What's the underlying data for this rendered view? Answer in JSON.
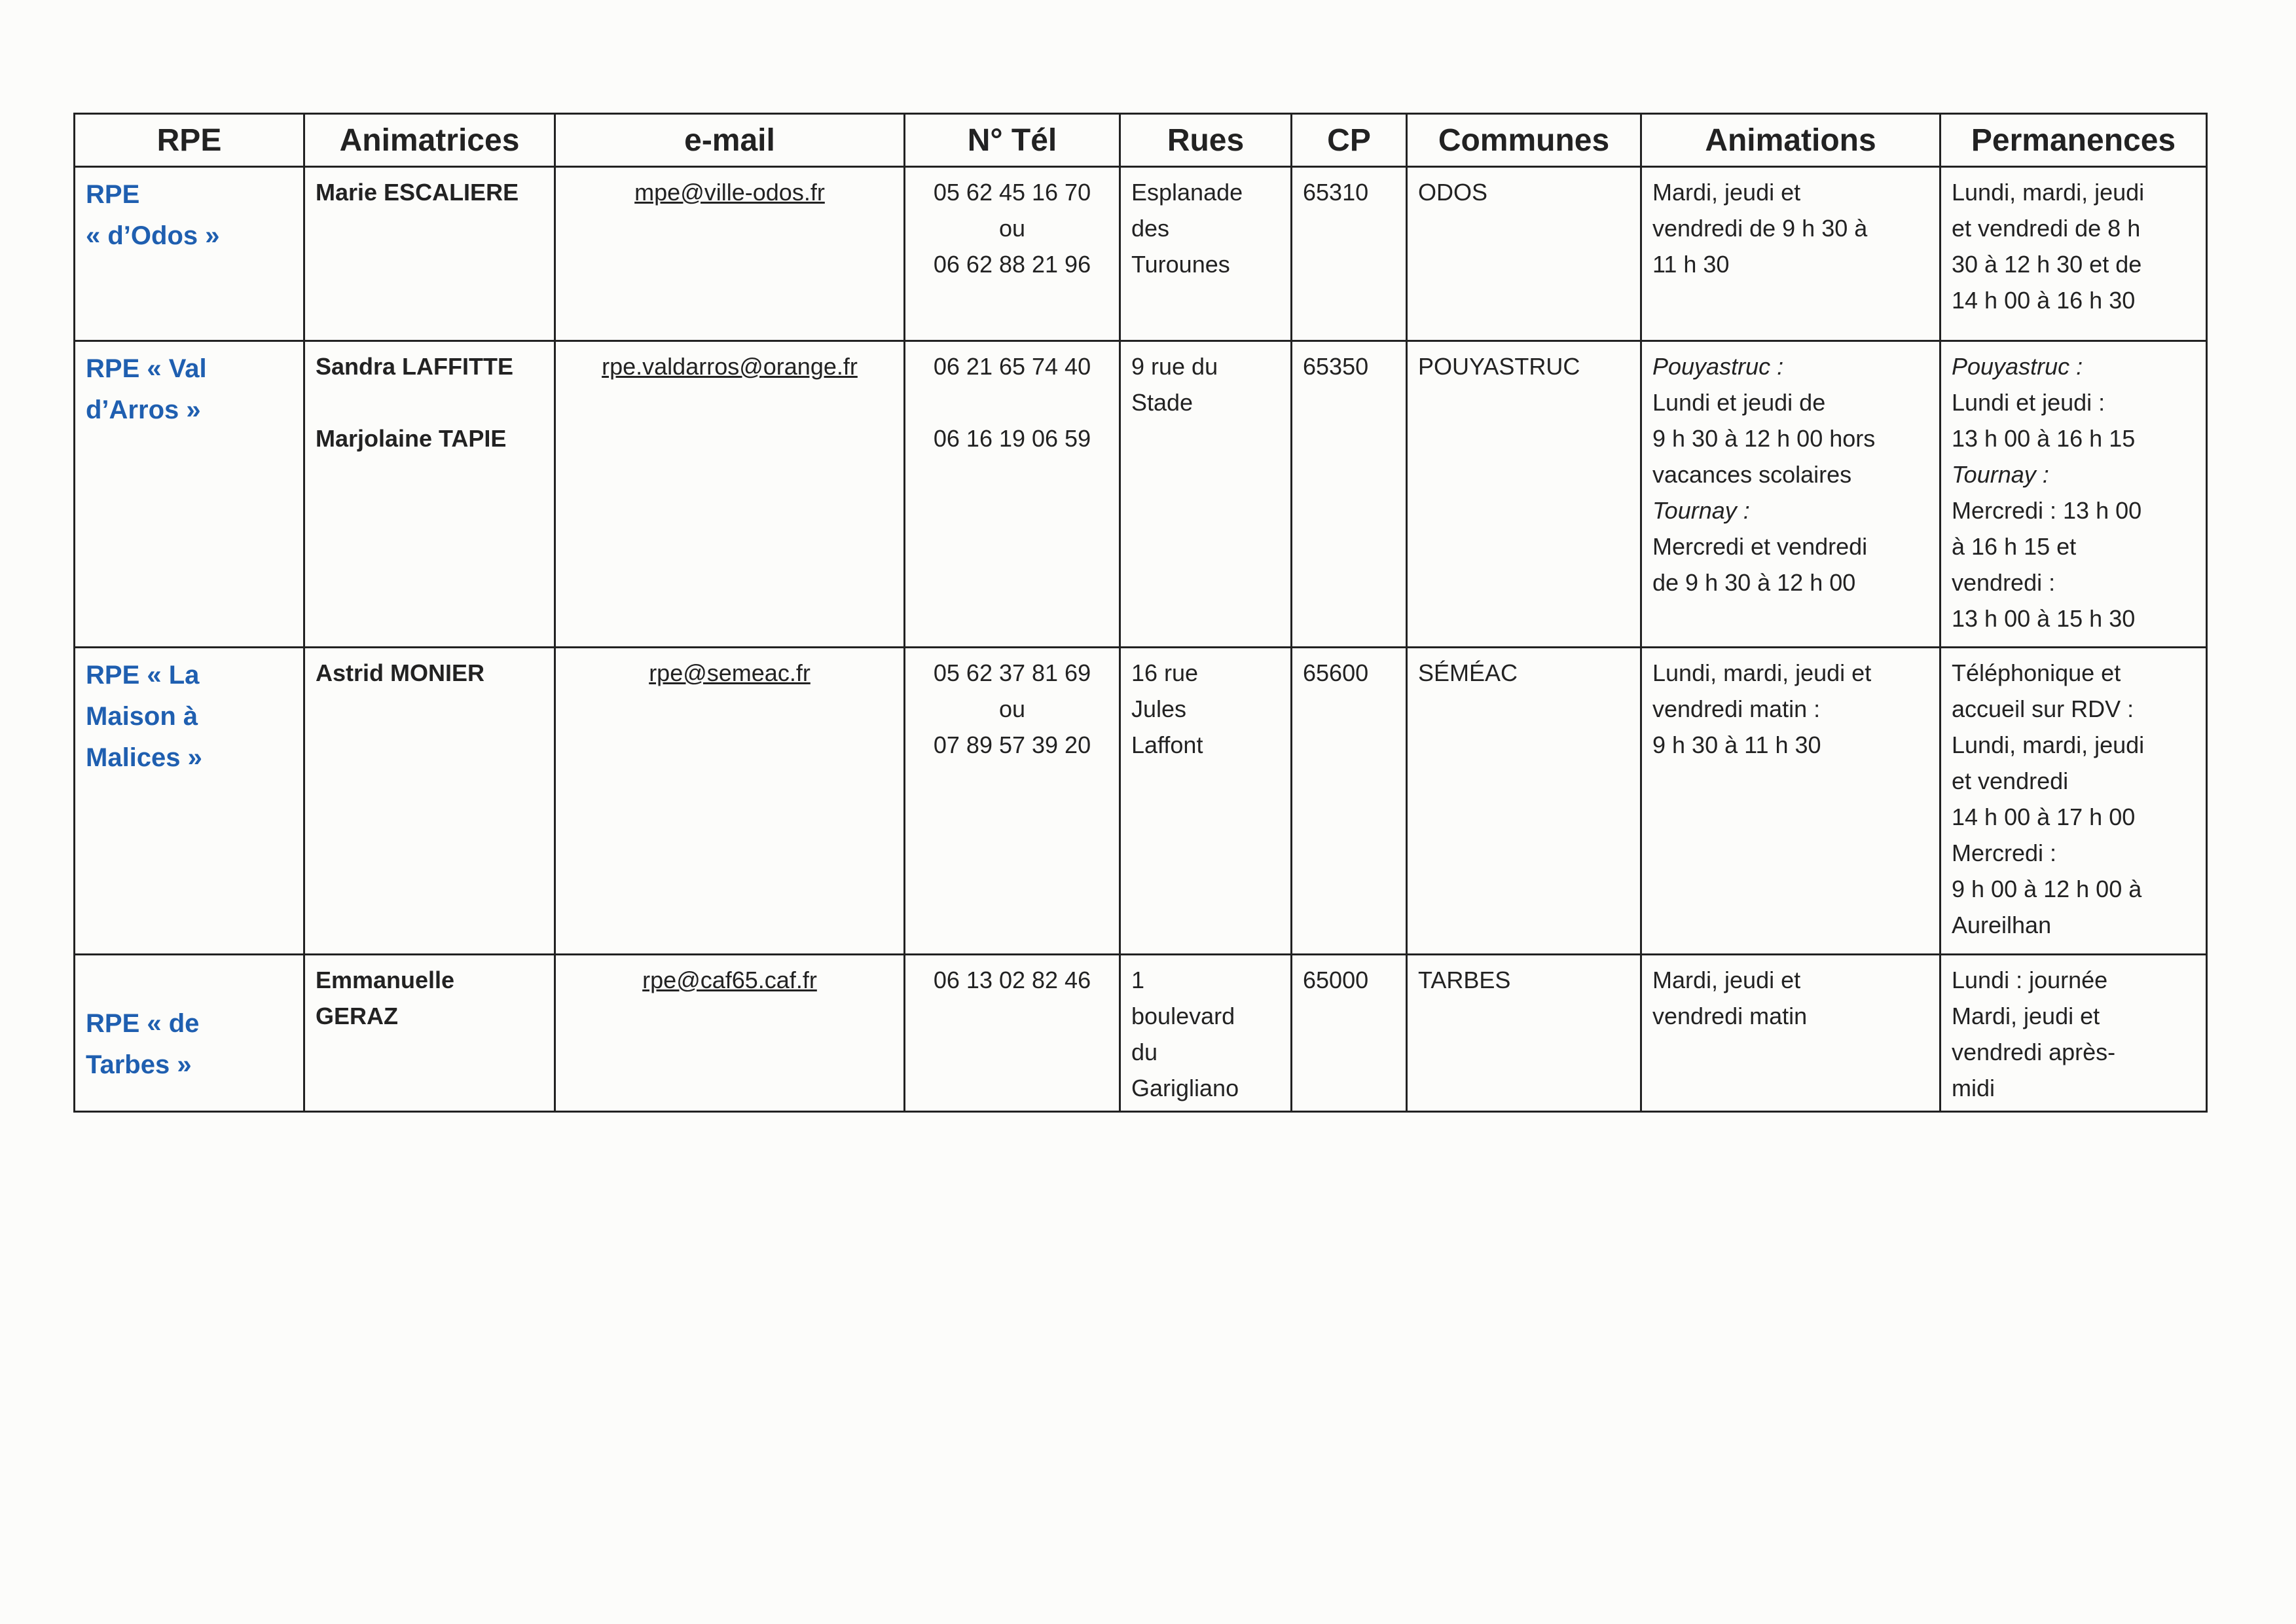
{
  "headers": [
    "RPE",
    "Animatrices",
    "e-mail",
    "N° Tél",
    "Rues",
    "CP",
    "Communes",
    "Animations",
    "Permanences"
  ],
  "rows": [
    {
      "rpe": [
        {
          "t": "RPE"
        },
        {
          "t": "« d’Odos »"
        }
      ],
      "animatrices": [
        {
          "t": "Marie ESCALIERE"
        }
      ],
      "email": [
        {
          "t": "mpe@ville-odos.fr"
        }
      ],
      "tel": [
        {
          "t": "05 62 45 16 70"
        },
        {
          "t": "ou"
        },
        {
          "t": "06 62 88 21 96"
        }
      ],
      "rues": [
        {
          "t": "Esplanade"
        },
        {
          "t": "des"
        },
        {
          "t": "Turounes"
        }
      ],
      "cp": [
        {
          "t": "65310"
        }
      ],
      "communes": [
        {
          "t": "ODOS"
        }
      ],
      "animations": [
        {
          "t": "Mardi, jeudi et"
        },
        {
          "t": "vendredi de 9 h 30 à"
        },
        {
          "t": "11 h 30"
        }
      ],
      "permanences": [
        {
          "t": "Lundi, mardi, jeudi"
        },
        {
          "t": "et vendredi de 8 h"
        },
        {
          "t": "30 à 12 h 30 et de"
        },
        {
          "t": "14 h 00 à 16 h 30"
        }
      ]
    },
    {
      "rpe": [
        {
          "t": "RPE « Val"
        },
        {
          "t": "d’Arros »"
        }
      ],
      "animatrices": [
        {
          "t": "Sandra LAFFITTE"
        },
        {
          "t": ""
        },
        {
          "t": "Marjolaine TAPIE"
        }
      ],
      "email": [
        {
          "t": "rpe.valdarros@orange.fr"
        }
      ],
      "tel": [
        {
          "t": "06 21 65 74 40"
        },
        {
          "t": ""
        },
        {
          "t": "06 16 19 06 59"
        }
      ],
      "rues": [
        {
          "t": "9 rue du"
        },
        {
          "t": "Stade"
        }
      ],
      "cp": [
        {
          "t": "65350"
        }
      ],
      "communes": [
        {
          "t": "POUYASTRUC"
        }
      ],
      "animations": [
        {
          "t": "Pouyastruc :",
          "i": true
        },
        {
          "t": "Lundi et jeudi de"
        },
        {
          "t": "9 h 30 à 12 h 00 hors"
        },
        {
          "t": "vacances scolaires"
        },
        {
          "t": "Tournay :",
          "i": true
        },
        {
          "t": "Mercredi et vendredi"
        },
        {
          "t": "de 9 h 30 à 12 h 00"
        }
      ],
      "permanences": [
        {
          "t": "Pouyastruc :",
          "i": true
        },
        {
          "t": "Lundi et jeudi :"
        },
        {
          "t": "13 h 00 à 16 h 15"
        },
        {
          "t": "Tournay :",
          "i": true
        },
        {
          "t": "Mercredi : 13 h 00"
        },
        {
          "t": "à 16 h 15 et"
        },
        {
          "t": "vendredi :"
        },
        {
          "t": "13 h 00 à 15 h 30"
        }
      ]
    },
    {
      "rpe": [
        {
          "t": "RPE « La"
        },
        {
          "t": "Maison à"
        },
        {
          "t": "Malices »"
        }
      ],
      "animatrices": [
        {
          "t": "Astrid MONIER"
        }
      ],
      "email": [
        {
          "t": "rpe@semeac.fr"
        }
      ],
      "tel": [
        {
          "t": "05 62 37 81 69"
        },
        {
          "t": "ou"
        },
        {
          "t": "07 89 57 39 20"
        }
      ],
      "rues": [
        {
          "t": "16 rue"
        },
        {
          "t": "Jules"
        },
        {
          "t": "Laffont"
        }
      ],
      "cp": [
        {
          "t": "65600"
        }
      ],
      "communes": [
        {
          "t": "SÉMÉAC"
        }
      ],
      "animations": [
        {
          "t": "Lundi, mardi, jeudi et"
        },
        {
          "t": "vendredi matin :"
        },
        {
          "t": "9 h 30 à 11 h 30"
        }
      ],
      "permanences": [
        {
          "t": "Téléphonique et"
        },
        {
          "t": "accueil sur RDV :"
        },
        {
          "t": "Lundi, mardi, jeudi"
        },
        {
          "t": "et vendredi"
        },
        {
          "t": "14 h 00 à 17 h 00"
        },
        {
          "t": "Mercredi :"
        },
        {
          "t": "9 h 00 à 12 h 00 à"
        },
        {
          "t": "Aureilhan"
        }
      ]
    },
    {
      "rpe": [
        {
          "t": ""
        },
        {
          "t": "RPE « de"
        },
        {
          "t": "Tarbes »"
        }
      ],
      "animatrices": [
        {
          "t": "Emmanuelle"
        },
        {
          "t": "GERAZ"
        }
      ],
      "email": [
        {
          "t": "rpe@caf65.caf.fr"
        }
      ],
      "tel": [
        {
          "t": "06 13 02 82 46"
        }
      ],
      "rues": [
        {
          "t": "1"
        },
        {
          "t": "boulevard"
        },
        {
          "t": "du"
        },
        {
          "t": "Garigliano"
        }
      ],
      "cp": [
        {
          "t": "65000"
        }
      ],
      "communes": [
        {
          "t": "TARBES"
        }
      ],
      "animations": [
        {
          "t": "Mardi, jeudi et"
        },
        {
          "t": "vendredi matin"
        }
      ],
      "permanences": [
        {
          "t": "Lundi : journée"
        },
        {
          "t": "Mardi, jeudi et"
        },
        {
          "t": "vendredi après-"
        },
        {
          "t": "midi"
        }
      ]
    }
  ],
  "colors": {
    "rpe_text": "#1f5fb0",
    "border": "#222222",
    "paper": "#fcfcfa"
  }
}
